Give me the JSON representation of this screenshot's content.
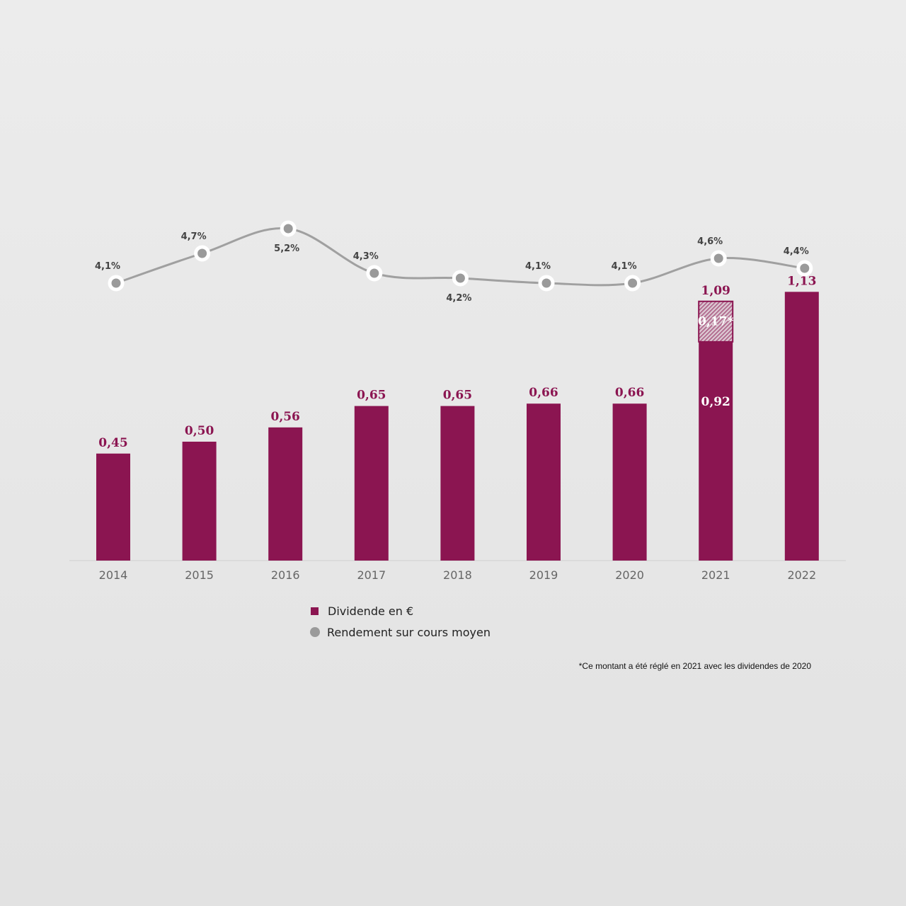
{
  "colors": {
    "bar": "#8b1551",
    "line": "#a0a0a0",
    "marker": "#9a9a9a",
    "marker_ring": "#ffffff",
    "axis": "#d0d0d0"
  },
  "legend": {
    "dividend": "Dividende en €",
    "yield": "Rendement sur cours moyen"
  },
  "footnote": "*Ce montant a été réglé en 2021 avec les dividendes de 2020",
  "chart_data": {
    "type": "bar",
    "categories": [
      "2014",
      "2015",
      "2016",
      "2017",
      "2018",
      "2019",
      "2020",
      "2021",
      "2022"
    ],
    "series": [
      {
        "name": "Dividende en €",
        "type": "bar",
        "values": [
          0.45,
          0.5,
          0.56,
          0.65,
          0.65,
          0.66,
          0.66,
          1.09,
          1.13
        ],
        "labels": [
          "0,45",
          "0,50",
          "0,56",
          "0,65",
          "0,65",
          "0,66",
          "0,66",
          "1,09",
          "1,13"
        ],
        "segments": {
          "2021": [
            {
              "value": 0.92,
              "label": "0,92",
              "pattern": "solid"
            },
            {
              "value": 0.17,
              "label": "0,17*",
              "pattern": "hatched"
            }
          ]
        }
      },
      {
        "name": "Rendement sur cours moyen",
        "type": "line",
        "values": [
          4.1,
          4.7,
          5.2,
          4.3,
          4.2,
          4.1,
          4.1,
          4.6,
          4.4
        ],
        "labels": [
          "4,1%",
          "4,7%",
          "5,2%",
          "4,3%",
          "4,2%",
          "4,1%",
          "4,1%",
          "4,6%",
          "4,4%"
        ],
        "label_side": [
          "above",
          "above",
          "below",
          "above",
          "below",
          "above",
          "above",
          "above",
          "above"
        ]
      }
    ],
    "title": "",
    "xlabel": "",
    "ylabel": "",
    "legend_position": "bottom",
    "grid": false
  }
}
